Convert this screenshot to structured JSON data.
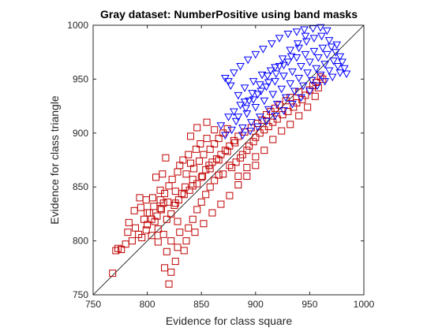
{
  "chart_data": {
    "type": "scatter",
    "title": "Gray dataset: NumberPositive using band masks",
    "xlabel": "Evidence for class square",
    "ylabel": "Evidence for class triangle",
    "xlim": [
      750,
      1000
    ],
    "ylim": [
      750,
      1000
    ],
    "x_ticks": [
      750,
      800,
      850,
      900,
      950,
      1000
    ],
    "y_ticks": [
      750,
      800,
      850,
      900,
      950,
      1000
    ],
    "x_tick_labels": [
      "750",
      "800",
      "850",
      "900",
      "950",
      "1000"
    ],
    "y_tick_labels": [
      "750",
      "800",
      "850",
      "900",
      "950",
      "1000"
    ],
    "grid": false,
    "legend": "none",
    "diagonal_line": {
      "from": [
        750,
        750
      ],
      "to": [
        1000,
        1000
      ],
      "color": "#000000"
    },
    "series": [
      {
        "marker": "square",
        "color": "#ff0000",
        "edge_color": "#c00000",
        "points": [
          [
            768,
            770
          ],
          [
            771,
            791
          ],
          [
            773,
            793
          ],
          [
            776,
            792
          ],
          [
            780,
            797
          ],
          [
            782,
            808
          ],
          [
            786,
            800
          ],
          [
            789,
            812
          ],
          [
            792,
            806
          ],
          [
            794,
            831
          ],
          [
            795,
            803
          ],
          [
            797,
            820
          ],
          [
            799,
            810
          ],
          [
            800,
            815
          ],
          [
            802,
            826
          ],
          [
            804,
            805
          ],
          [
            805,
            840
          ],
          [
            807,
            818
          ],
          [
            809,
            823
          ],
          [
            810,
            811
          ],
          [
            812,
            847
          ],
          [
            813,
            829
          ],
          [
            815,
            835
          ],
          [
            816,
            844
          ],
          [
            818,
            820
          ],
          [
            819,
            836
          ],
          [
            820,
            851
          ],
          [
            822,
            825
          ],
          [
            823,
            857
          ],
          [
            825,
            833
          ],
          [
            826,
            846
          ],
          [
            828,
            864
          ],
          [
            829,
            838
          ],
          [
            830,
            870
          ],
          [
            832,
            844
          ],
          [
            833,
            875
          ],
          [
            835,
            850
          ],
          [
            836,
            862
          ],
          [
            838,
            880
          ],
          [
            839,
            847
          ],
          [
            840,
            872
          ],
          [
            842,
            857
          ],
          [
            843,
            867
          ],
          [
            845,
            885
          ],
          [
            846,
            853
          ],
          [
            848,
            874
          ],
          [
            849,
            890
          ],
          [
            851,
            860
          ],
          [
            852,
            880
          ],
          [
            854,
            866
          ],
          [
            855,
            895
          ],
          [
            857,
            870
          ],
          [
            858,
            885
          ],
          [
            860,
            873
          ],
          [
            862,
            890
          ],
          [
            864,
            876
          ],
          [
            866,
            895
          ],
          [
            868,
            880
          ],
          [
            870,
            900
          ],
          [
            872,
            884
          ],
          [
            874,
            904
          ],
          [
            876,
            888
          ],
          [
            878,
            868
          ],
          [
            880,
            893
          ],
          [
            882,
            873
          ],
          [
            884,
            897
          ],
          [
            886,
            877
          ],
          [
            888,
            880
          ],
          [
            890,
            901
          ],
          [
            892,
            884
          ],
          [
            894,
            888
          ],
          [
            896,
            905
          ],
          [
            898,
            892
          ],
          [
            900,
            896
          ],
          [
            902,
            909
          ],
          [
            904,
            900
          ],
          [
            906,
            912
          ],
          [
            908,
            903
          ],
          [
            910,
            917
          ],
          [
            912,
            906
          ],
          [
            914,
            920
          ],
          [
            916,
            910
          ],
          [
            918,
            923
          ],
          [
            920,
            913
          ],
          [
            922,
            926
          ],
          [
            925,
            917
          ],
          [
            928,
            930
          ],
          [
            930,
            920
          ],
          [
            932,
            933
          ],
          [
            935,
            924
          ],
          [
            938,
            928
          ],
          [
            940,
            938
          ],
          [
            943,
            931
          ],
          [
            946,
            935
          ],
          [
            950,
            940
          ],
          [
            953,
            944
          ],
          [
            956,
            947
          ],
          [
            960,
            952
          ],
          [
            812,
            830
          ],
          [
            818,
            790
          ],
          [
            822,
            800
          ],
          [
            826,
            781
          ],
          [
            830,
            808
          ],
          [
            834,
            791
          ],
          [
            838,
            812
          ],
          [
            842,
            820
          ],
          [
            846,
            829
          ],
          [
            850,
            836
          ],
          [
            854,
            843
          ],
          [
            858,
            850
          ],
          [
            862,
            856
          ],
          [
            866,
            861
          ],
          [
            820,
            760
          ],
          [
            816,
            775
          ],
          [
            822,
            771
          ],
          [
            828,
            794
          ],
          [
            804,
            820
          ],
          [
            799,
            838
          ],
          [
            808,
            859
          ],
          [
            814,
            862
          ],
          [
            817,
            877
          ],
          [
            783,
            817
          ],
          [
            788,
            828
          ],
          [
            793,
            840
          ],
          [
            840,
            897
          ],
          [
            846,
            905
          ],
          [
            855,
            910
          ],
          [
            862,
            903
          ],
          [
            870,
            862
          ],
          [
            876,
            870
          ],
          [
            884,
            860
          ],
          [
            892,
            868
          ],
          [
            900,
            878
          ],
          [
            908,
            884
          ],
          [
            916,
            894
          ],
          [
            924,
            902
          ],
          [
            932,
            908
          ],
          [
            940,
            916
          ],
          [
            948,
            924
          ],
          [
            955,
            934
          ],
          [
            958,
            942
          ],
          [
            962,
            950
          ],
          [
            836,
            800
          ],
          [
            844,
            808
          ],
          [
            852,
            816
          ],
          [
            860,
            826
          ],
          [
            868,
            834
          ],
          [
            876,
            842
          ],
          [
            884,
            852
          ],
          [
            892,
            860
          ],
          [
            900,
            870
          ],
          [
            826,
            835
          ],
          [
            834,
            843
          ],
          [
            842,
            851
          ],
          [
            850,
            859
          ],
          [
            858,
            867
          ],
          [
            866,
            875
          ],
          [
            874,
            883
          ],
          [
            881,
            891
          ],
          [
            800,
            826
          ],
          [
            806,
            832
          ],
          [
            812,
            838
          ],
          [
            810,
            799
          ],
          [
            815,
            806
          ],
          [
            828,
            818
          ]
        ]
      },
      {
        "marker": "triangle-down",
        "color": "#0000ff",
        "edge_color": "#0000c0",
        "points": [
          [
            868,
            907
          ],
          [
            872,
            898
          ],
          [
            875,
            915
          ],
          [
            877,
            944
          ],
          [
            878,
            903
          ],
          [
            880,
            920
          ],
          [
            882,
            911
          ],
          [
            884,
            935
          ],
          [
            886,
            926
          ],
          [
            888,
            905
          ],
          [
            890,
            942
          ],
          [
            892,
            918
          ],
          [
            894,
            930
          ],
          [
            896,
            910
          ],
          [
            898,
            948
          ],
          [
            900,
            924
          ],
          [
            902,
            936
          ],
          [
            904,
            915
          ],
          [
            906,
            954
          ],
          [
            908,
            930
          ],
          [
            910,
            943
          ],
          [
            912,
            922
          ],
          [
            914,
            958
          ],
          [
            916,
            936
          ],
          [
            918,
            948
          ],
          [
            920,
            927
          ],
          [
            922,
            962
          ],
          [
            924,
            941
          ],
          [
            926,
            953
          ],
          [
            928,
            933
          ],
          [
            930,
            966
          ],
          [
            932,
            946
          ],
          [
            934,
            957
          ],
          [
            936,
            939
          ],
          [
            938,
            970
          ],
          [
            940,
            951
          ],
          [
            942,
            962
          ],
          [
            944,
            944
          ],
          [
            946,
            973
          ],
          [
            948,
            956
          ],
          [
            950,
            966
          ],
          [
            952,
            949
          ],
          [
            954,
            976
          ],
          [
            956,
            960
          ],
          [
            958,
            970
          ],
          [
            960,
            954
          ],
          [
            962,
            979
          ],
          [
            964,
            964
          ],
          [
            966,
            973
          ],
          [
            968,
            958
          ],
          [
            970,
            980
          ],
          [
            972,
            967
          ],
          [
            974,
            975
          ],
          [
            976,
            962
          ],
          [
            978,
            971
          ],
          [
            980,
            966
          ],
          [
            982,
            960
          ],
          [
            984,
            955
          ],
          [
            875,
            948
          ],
          [
            872,
            951
          ],
          [
            880,
            956
          ],
          [
            886,
            962
          ],
          [
            893,
            968
          ],
          [
            900,
            973
          ],
          [
            907,
            978
          ],
          [
            915,
            983
          ],
          [
            922,
            988
          ],
          [
            930,
            992
          ],
          [
            938,
            994
          ],
          [
            945,
            996
          ],
          [
            953,
            997
          ],
          [
            960,
            998
          ],
          [
            966,
            995
          ],
          [
            888,
            898
          ],
          [
            895,
            902
          ],
          [
            902,
            906
          ],
          [
            910,
            911
          ],
          [
            918,
            916
          ],
          [
            926,
            921
          ],
          [
            934,
            927
          ],
          [
            942,
            933
          ],
          [
            950,
            939
          ],
          [
            957,
            944
          ],
          [
            964,
            948
          ],
          [
            971,
            952
          ],
          [
            978,
            956
          ],
          [
            884,
            915
          ],
          [
            891,
            923
          ],
          [
            898,
            931
          ],
          [
            905,
            939
          ],
          [
            912,
            947
          ],
          [
            919,
            955
          ],
          [
            926,
            963
          ],
          [
            933,
            971
          ],
          [
            940,
            979
          ],
          [
            947,
            985
          ],
          [
            954,
            988
          ],
          [
            961,
            990
          ],
          [
            968,
            986
          ],
          [
            975,
            982
          ],
          [
            890,
            929
          ],
          [
            897,
            937
          ],
          [
            904,
            945
          ],
          [
            911,
            953
          ],
          [
            918,
            961
          ],
          [
            925,
            969
          ],
          [
            932,
            977
          ],
          [
            939,
            983
          ],
          [
            946,
            990
          ]
        ]
      }
    ]
  }
}
